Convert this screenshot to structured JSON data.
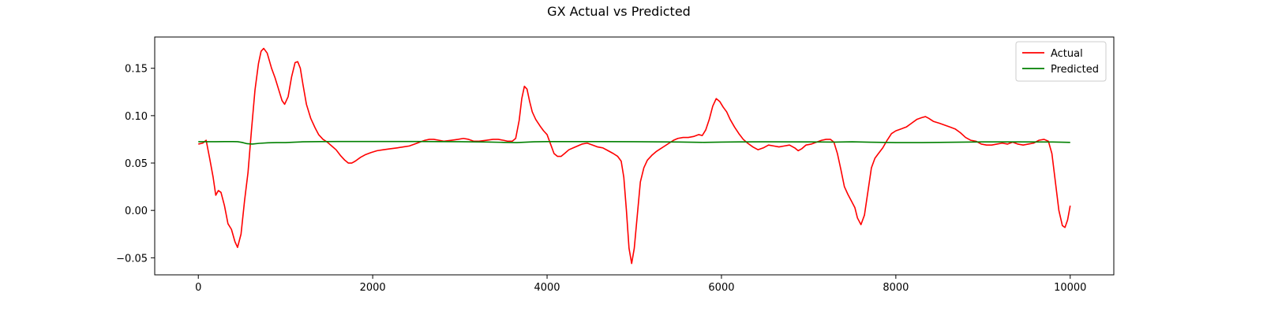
{
  "chart_data": {
    "type": "line",
    "title": "GX Actual vs Predicted",
    "xlabel": "",
    "ylabel": "",
    "xlim": [
      -500,
      10500
    ],
    "ylim": [
      -0.068,
      0.183
    ],
    "xticks": [
      0,
      2000,
      4000,
      6000,
      8000,
      10000
    ],
    "xtick_labels": [
      "0",
      "2000",
      "4000",
      "6000",
      "8000",
      "10000"
    ],
    "yticks": [
      -0.05,
      0.0,
      0.05,
      0.1,
      0.15
    ],
    "ytick_labels": [
      "−0.05",
      "0.00",
      "0.05",
      "0.10",
      "0.15"
    ],
    "grid": false,
    "legend": {
      "placement": "top-right"
    },
    "series": [
      {
        "name": "Actual",
        "color": "#ff0000",
        "points": [
          [
            0,
            0.07
          ],
          [
            50,
            0.071
          ],
          [
            90,
            0.074
          ],
          [
            130,
            0.055
          ],
          [
            170,
            0.035
          ],
          [
            200,
            0.016
          ],
          [
            230,
            0.021
          ],
          [
            260,
            0.019
          ],
          [
            300,
            0.005
          ],
          [
            340,
            -0.014
          ],
          [
            380,
            -0.02
          ],
          [
            420,
            -0.033
          ],
          [
            450,
            -0.039
          ],
          [
            490,
            -0.025
          ],
          [
            530,
            0.01
          ],
          [
            570,
            0.04
          ],
          [
            610,
            0.085
          ],
          [
            650,
            0.127
          ],
          [
            690,
            0.155
          ],
          [
            720,
            0.168
          ],
          [
            750,
            0.171
          ],
          [
            790,
            0.166
          ],
          [
            840,
            0.15
          ],
          [
            880,
            0.14
          ],
          [
            920,
            0.128
          ],
          [
            960,
            0.116
          ],
          [
            990,
            0.112
          ],
          [
            1030,
            0.12
          ],
          [
            1070,
            0.141
          ],
          [
            1110,
            0.156
          ],
          [
            1140,
            0.157
          ],
          [
            1170,
            0.15
          ],
          [
            1200,
            0.133
          ],
          [
            1240,
            0.112
          ],
          [
            1290,
            0.097
          ],
          [
            1340,
            0.087
          ],
          [
            1380,
            0.08
          ],
          [
            1430,
            0.075
          ],
          [
            1480,
            0.072
          ],
          [
            1530,
            0.068
          ],
          [
            1580,
            0.064
          ],
          [
            1630,
            0.058
          ],
          [
            1680,
            0.053
          ],
          [
            1720,
            0.05
          ],
          [
            1760,
            0.05
          ],
          [
            1800,
            0.052
          ],
          [
            1860,
            0.056
          ],
          [
            1920,
            0.059
          ],
          [
            1980,
            0.061
          ],
          [
            2050,
            0.063
          ],
          [
            2120,
            0.064
          ],
          [
            2200,
            0.065
          ],
          [
            2280,
            0.066
          ],
          [
            2350,
            0.067
          ],
          [
            2420,
            0.068
          ],
          [
            2480,
            0.07
          ],
          [
            2540,
            0.072
          ],
          [
            2600,
            0.074
          ],
          [
            2650,
            0.075
          ],
          [
            2700,
            0.075
          ],
          [
            2760,
            0.074
          ],
          [
            2820,
            0.073
          ],
          [
            2900,
            0.074
          ],
          [
            2980,
            0.075
          ],
          [
            3040,
            0.076
          ],
          [
            3100,
            0.075
          ],
          [
            3160,
            0.073
          ],
          [
            3220,
            0.073
          ],
          [
            3300,
            0.074
          ],
          [
            3380,
            0.075
          ],
          [
            3440,
            0.075
          ],
          [
            3500,
            0.074
          ],
          [
            3550,
            0.073
          ],
          [
            3600,
            0.073
          ],
          [
            3640,
            0.076
          ],
          [
            3680,
            0.095
          ],
          [
            3710,
            0.118
          ],
          [
            3740,
            0.131
          ],
          [
            3770,
            0.128
          ],
          [
            3800,
            0.115
          ],
          [
            3830,
            0.104
          ],
          [
            3870,
            0.096
          ],
          [
            3920,
            0.089
          ],
          [
            3960,
            0.084
          ],
          [
            4000,
            0.08
          ],
          [
            4040,
            0.07
          ],
          [
            4080,
            0.06
          ],
          [
            4120,
            0.057
          ],
          [
            4160,
            0.057
          ],
          [
            4200,
            0.06
          ],
          [
            4250,
            0.064
          ],
          [
            4300,
            0.066
          ],
          [
            4350,
            0.068
          ],
          [
            4400,
            0.07
          ],
          [
            4460,
            0.071
          ],
          [
            4520,
            0.069
          ],
          [
            4580,
            0.067
          ],
          [
            4640,
            0.066
          ],
          [
            4700,
            0.063
          ],
          [
            4760,
            0.06
          ],
          [
            4810,
            0.057
          ],
          [
            4850,
            0.052
          ],
          [
            4880,
            0.035
          ],
          [
            4910,
            0.0
          ],
          [
            4940,
            -0.04
          ],
          [
            4970,
            -0.056
          ],
          [
            5000,
            -0.04
          ],
          [
            5030,
            -0.01
          ],
          [
            5070,
            0.03
          ],
          [
            5110,
            0.045
          ],
          [
            5150,
            0.053
          ],
          [
            5200,
            0.058
          ],
          [
            5250,
            0.062
          ],
          [
            5300,
            0.065
          ],
          [
            5350,
            0.068
          ],
          [
            5400,
            0.071
          ],
          [
            5450,
            0.074
          ],
          [
            5500,
            0.076
          ],
          [
            5560,
            0.077
          ],
          [
            5620,
            0.077
          ],
          [
            5680,
            0.078
          ],
          [
            5740,
            0.08
          ],
          [
            5780,
            0.079
          ],
          [
            5820,
            0.085
          ],
          [
            5860,
            0.096
          ],
          [
            5900,
            0.11
          ],
          [
            5940,
            0.118
          ],
          [
            5980,
            0.115
          ],
          [
            6020,
            0.109
          ],
          [
            6060,
            0.104
          ],
          [
            6100,
            0.096
          ],
          [
            6150,
            0.088
          ],
          [
            6200,
            0.081
          ],
          [
            6250,
            0.075
          ],
          [
            6300,
            0.071
          ],
          [
            6360,
            0.067
          ],
          [
            6420,
            0.064
          ],
          [
            6480,
            0.066
          ],
          [
            6540,
            0.069
          ],
          [
            6600,
            0.068
          ],
          [
            6660,
            0.067
          ],
          [
            6720,
            0.068
          ],
          [
            6780,
            0.069
          ],
          [
            6840,
            0.066
          ],
          [
            6880,
            0.063
          ],
          [
            6920,
            0.065
          ],
          [
            6970,
            0.069
          ],
          [
            7030,
            0.07
          ],
          [
            7090,
            0.072
          ],
          [
            7150,
            0.074
          ],
          [
            7200,
            0.075
          ],
          [
            7250,
            0.075
          ],
          [
            7290,
            0.072
          ],
          [
            7330,
            0.06
          ],
          [
            7370,
            0.043
          ],
          [
            7410,
            0.025
          ],
          [
            7450,
            0.017
          ],
          [
            7490,
            0.01
          ],
          [
            7530,
            0.003
          ],
          [
            7560,
            -0.008
          ],
          [
            7600,
            -0.015
          ],
          [
            7640,
            -0.005
          ],
          [
            7680,
            0.02
          ],
          [
            7720,
            0.045
          ],
          [
            7760,
            0.055
          ],
          [
            7800,
            0.06
          ],
          [
            7850,
            0.066
          ],
          [
            7900,
            0.074
          ],
          [
            7950,
            0.081
          ],
          [
            8000,
            0.084
          ],
          [
            8060,
            0.086
          ],
          [
            8120,
            0.088
          ],
          [
            8180,
            0.092
          ],
          [
            8240,
            0.096
          ],
          [
            8300,
            0.098
          ],
          [
            8340,
            0.099
          ],
          [
            8380,
            0.097
          ],
          [
            8430,
            0.094
          ],
          [
            8500,
            0.092
          ],
          [
            8560,
            0.09
          ],
          [
            8620,
            0.088
          ],
          [
            8680,
            0.086
          ],
          [
            8740,
            0.082
          ],
          [
            8800,
            0.077
          ],
          [
            8860,
            0.074
          ],
          [
            8920,
            0.073
          ],
          [
            8980,
            0.07
          ],
          [
            9040,
            0.069
          ],
          [
            9100,
            0.069
          ],
          [
            9160,
            0.07
          ],
          [
            9220,
            0.071
          ],
          [
            9280,
            0.07
          ],
          [
            9340,
            0.072
          ],
          [
            9400,
            0.07
          ],
          [
            9460,
            0.069
          ],
          [
            9520,
            0.07
          ],
          [
            9580,
            0.071
          ],
          [
            9640,
            0.074
          ],
          [
            9700,
            0.075
          ],
          [
            9750,
            0.073
          ],
          [
            9790,
            0.06
          ],
          [
            9830,
            0.03
          ],
          [
            9870,
            0.0
          ],
          [
            9910,
            -0.016
          ],
          [
            9940,
            -0.018
          ],
          [
            9970,
            -0.01
          ],
          [
            10000,
            0.005
          ]
        ]
      },
      {
        "name": "Predicted",
        "color": "#008000",
        "points": [
          [
            0,
            0.0725
          ],
          [
            100,
            0.0725
          ],
          [
            200,
            0.0725
          ],
          [
            300,
            0.0726
          ],
          [
            400,
            0.0726
          ],
          [
            450,
            0.0725
          ],
          [
            500,
            0.0718
          ],
          [
            560,
            0.0704
          ],
          [
            620,
            0.07
          ],
          [
            700,
            0.0708
          ],
          [
            800,
            0.0714
          ],
          [
            900,
            0.0716
          ],
          [
            1000,
            0.0716
          ],
          [
            1100,
            0.072
          ],
          [
            1200,
            0.0724
          ],
          [
            1400,
            0.0726
          ],
          [
            1600,
            0.0727
          ],
          [
            2000,
            0.0727
          ],
          [
            2500,
            0.0727
          ],
          [
            3000,
            0.0725
          ],
          [
            3300,
            0.0722
          ],
          [
            3500,
            0.0718
          ],
          [
            3650,
            0.0716
          ],
          [
            3750,
            0.072
          ],
          [
            3850,
            0.0724
          ],
          [
            4000,
            0.0726
          ],
          [
            4500,
            0.0726
          ],
          [
            5000,
            0.0725
          ],
          [
            5500,
            0.0722
          ],
          [
            5800,
            0.0718
          ],
          [
            6000,
            0.0721
          ],
          [
            6200,
            0.0723
          ],
          [
            6500,
            0.0724
          ],
          [
            7000,
            0.0723
          ],
          [
            7300,
            0.0721
          ],
          [
            7500,
            0.0724
          ],
          [
            7700,
            0.072
          ],
          [
            8000,
            0.0716
          ],
          [
            8300,
            0.0716
          ],
          [
            8600,
            0.0719
          ],
          [
            9000,
            0.0723
          ],
          [
            9400,
            0.0723
          ],
          [
            9800,
            0.0722
          ],
          [
            10000,
            0.0718
          ]
        ]
      }
    ]
  }
}
